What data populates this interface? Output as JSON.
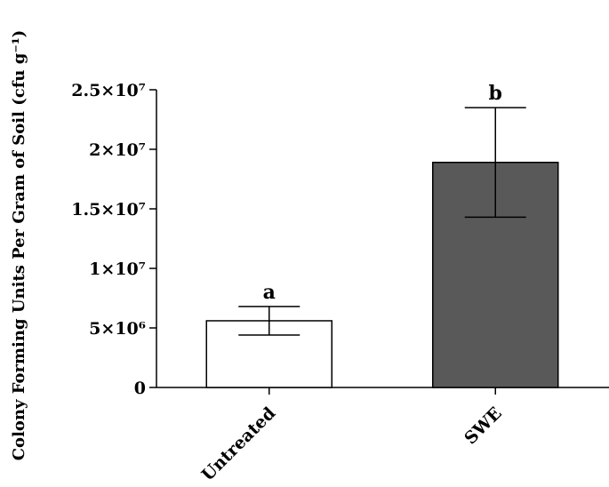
{
  "chart_data": {
    "type": "bar",
    "title": "",
    "xlabel": "",
    "ylabel": "Colony Forming Units Per Gram of Soil (cfu g⁻¹)",
    "ylim": [
      0,
      25000000
    ],
    "yticks": [
      {
        "value": 0,
        "label": "0"
      },
      {
        "value": 5000000,
        "label": "5×10⁶"
      },
      {
        "value": 10000000,
        "label": "1×10⁷"
      },
      {
        "value": 15000000,
        "label": "1.5×10⁷"
      },
      {
        "value": 20000000,
        "label": "2×10⁷"
      },
      {
        "value": 25000000,
        "label": "2.5×10⁷"
      }
    ],
    "categories": [
      "Untreated",
      "SWE"
    ],
    "values": [
      5600000,
      18900000
    ],
    "errors": [
      1200000,
      4600000
    ],
    "significance": [
      "a",
      "b"
    ],
    "colors": [
      "#ffffff",
      "#595959"
    ],
    "grid": false,
    "legend": "none"
  }
}
